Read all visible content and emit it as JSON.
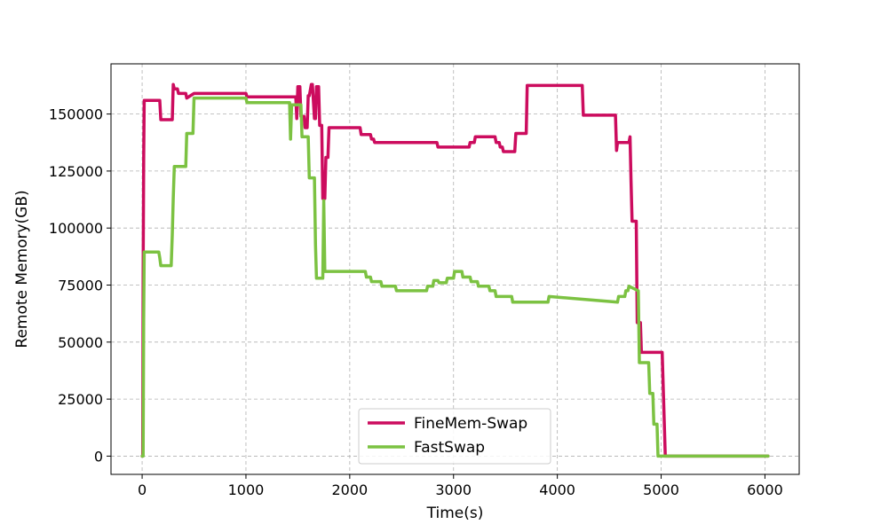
{
  "chart_data": {
    "type": "line",
    "xlabel": "Time(s)",
    "ylabel": "Remote Memory(GB)",
    "xlim": [
      -300,
      6330
    ],
    "ylim": [
      -8000,
      172000
    ],
    "xticks": [
      0,
      1000,
      2000,
      3000,
      4000,
      5000,
      6000
    ],
    "yticks": [
      0,
      25000,
      50000,
      75000,
      100000,
      125000,
      150000
    ],
    "grid": true,
    "legend_position": "lower-center",
    "series": [
      {
        "name": "FineMem-Swap",
        "color": "#cc0c5e",
        "x": [
          0,
          5,
          10,
          15,
          20,
          30,
          170,
          180,
          290,
          300,
          310,
          340,
          350,
          420,
          430,
          500,
          1000,
          1010,
          1480,
          1490,
          1500,
          1520,
          1530,
          1560,
          1570,
          1590,
          1600,
          1610,
          1630,
          1640,
          1660,
          1670,
          1680,
          1700,
          1710,
          1730,
          1740,
          1760,
          1770,
          1790,
          1800,
          1810,
          2100,
          2110,
          2200,
          2210,
          2230,
          2240,
          2840,
          2850,
          3150,
          3160,
          3200,
          3210,
          3400,
          3410,
          3440,
          3450,
          3470,
          3480,
          3590,
          3600,
          3700,
          3710,
          4240,
          4250,
          4560,
          4570,
          4580,
          4690,
          4700,
          4710,
          4720,
          4760,
          4770,
          4800,
          4810,
          4860,
          4870,
          4990,
          5000,
          5010,
          5040,
          5050,
          5500,
          6030
        ],
        "y": [
          0,
          0,
          80000,
          130000,
          156000,
          156000,
          156000,
          147500,
          147500,
          163000,
          161000,
          161000,
          159000,
          159000,
          157000,
          159000,
          159000,
          157500,
          157500,
          148000,
          162000,
          162000,
          149000,
          149000,
          144000,
          144000,
          158000,
          158000,
          163000,
          163000,
          148000,
          148000,
          162000,
          162000,
          145000,
          145000,
          113000,
          113000,
          131000,
          131000,
          144000,
          144000,
          144000,
          141000,
          141000,
          139000,
          139000,
          137500,
          137500,
          135500,
          135500,
          137500,
          137500,
          140000,
          140000,
          137500,
          137500,
          135500,
          135500,
          133500,
          133500,
          141500,
          141500,
          162500,
          162500,
          149500,
          149500,
          134000,
          137500,
          137500,
          140000,
          121000,
          103000,
          103000,
          58500,
          58500,
          45500,
          45500,
          45500,
          45500,
          45500,
          45500,
          0,
          0,
          0,
          0
        ],
        "y_corrected_note": ""
      },
      {
        "name": "FastSwap",
        "color": "#7cc242",
        "x": [
          0,
          10,
          15,
          20,
          160,
          170,
          180,
          280,
          290,
          300,
          310,
          420,
          430,
          490,
          500,
          1000,
          1010,
          1420,
          1430,
          1440,
          1530,
          1540,
          1600,
          1610,
          1660,
          1670,
          1680,
          1690,
          1700,
          1740,
          1750,
          1760,
          1940,
          1950,
          2150,
          2160,
          2200,
          2210,
          2300,
          2310,
          2440,
          2450,
          2740,
          2750,
          2800,
          2810,
          2850,
          2860,
          2930,
          2940,
          3000,
          3010,
          3080,
          3090,
          3160,
          3170,
          3230,
          3240,
          3340,
          3350,
          3400,
          3410,
          3560,
          3570,
          3800,
          3810,
          3910,
          3920,
          4580,
          4590,
          4650,
          4660,
          4680,
          4690,
          4780,
          4790,
          4880,
          4890,
          4920,
          4930,
          4960,
          4970,
          5000,
          6030
        ],
        "y": [
          0,
          0,
          60000,
          89500,
          89500,
          87000,
          83500,
          83500,
          97000,
          113000,
          127000,
          127000,
          141500,
          141500,
          157000,
          157000,
          155000,
          155000,
          139000,
          154000,
          154000,
          140000,
          140000,
          122000,
          122000,
          92500,
          78000,
          78000,
          78000,
          78000,
          112000,
          81000,
          81000,
          81000,
          81000,
          78500,
          78500,
          76500,
          76500,
          74500,
          74500,
          72500,
          72500,
          74500,
          74500,
          77000,
          77000,
          76000,
          76000,
          78000,
          78000,
          81000,
          81000,
          78500,
          78500,
          76500,
          76500,
          74500,
          74500,
          72500,
          72500,
          70000,
          70000,
          67500,
          67500,
          67500,
          67500,
          70000,
          67500,
          70000,
          70000,
          72500,
          72500,
          74500,
          72500,
          41000,
          41000,
          27500,
          27500,
          14000,
          14000,
          0,
          0,
          0
        ]
      }
    ]
  }
}
